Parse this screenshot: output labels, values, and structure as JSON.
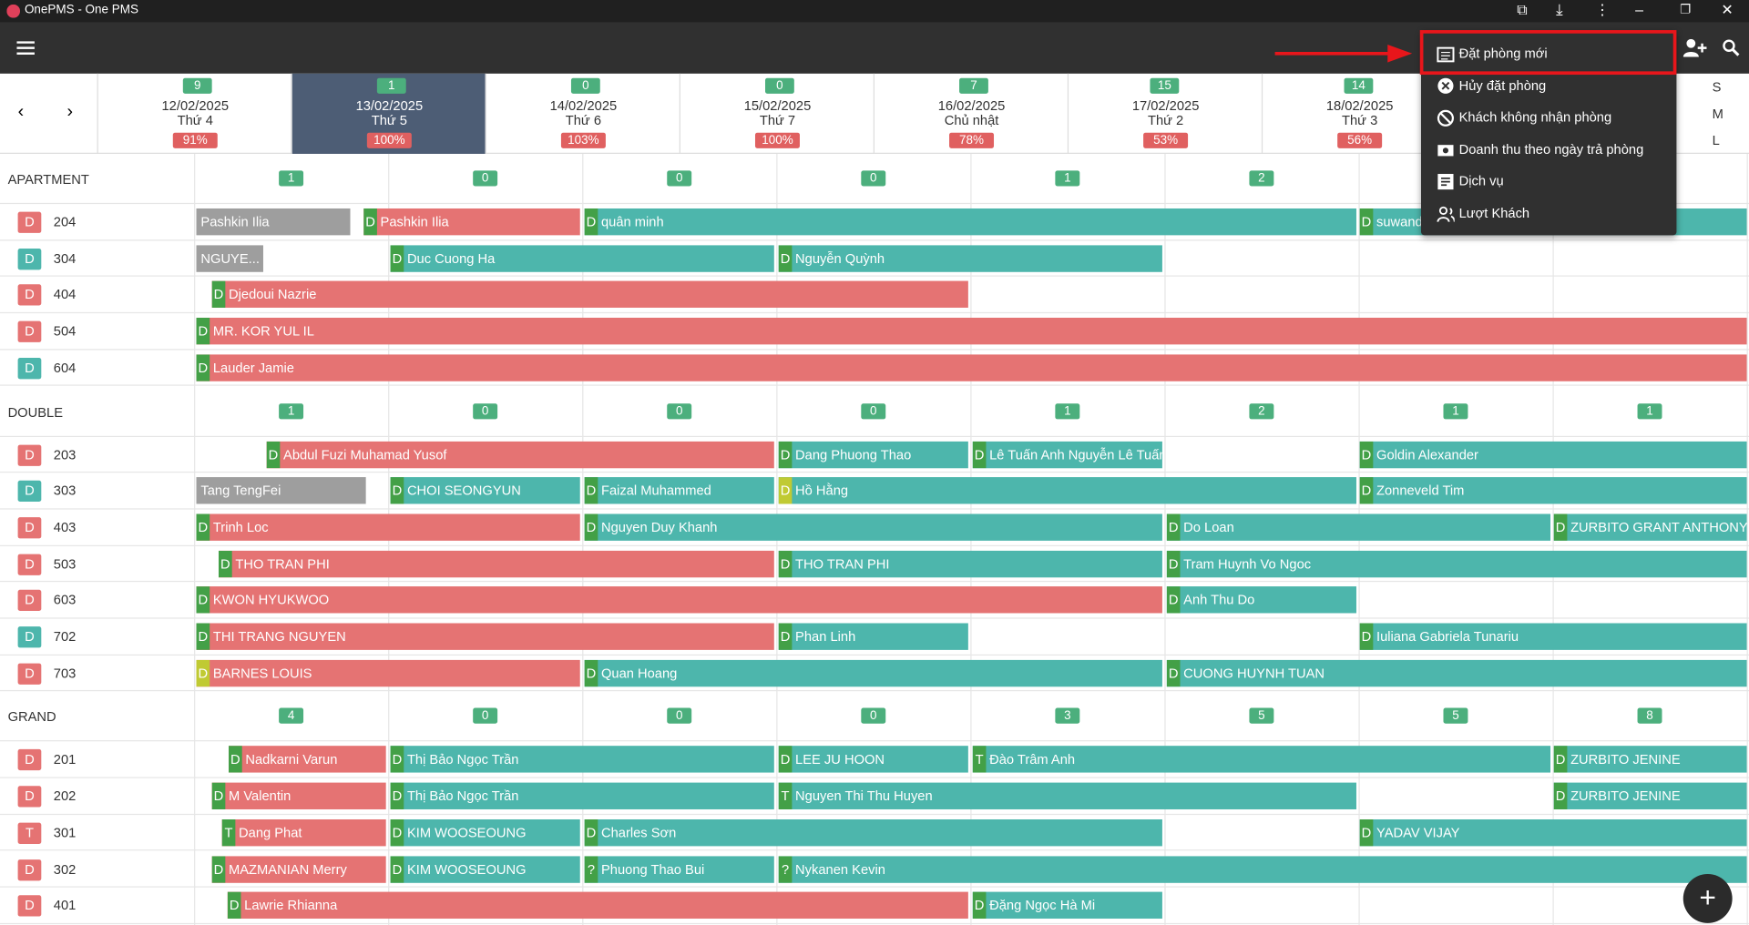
{
  "app_title": "OnePMS - One PMS",
  "days": [
    {
      "count": 9,
      "date": "12/02/2025",
      "weekday": "Thứ 4",
      "occupancy": "91%"
    },
    {
      "count": 1,
      "date": "13/02/2025",
      "weekday": "Thứ 5",
      "occupancy": "100%"
    },
    {
      "count": 0,
      "date": "14/02/2025",
      "weekday": "Thứ 6",
      "occupancy": "103%"
    },
    {
      "count": 0,
      "date": "15/02/2025",
      "weekday": "Thứ 7",
      "occupancy": "100%"
    },
    {
      "count": 7,
      "date": "16/02/2025",
      "weekday": "Chủ nhật",
      "occupancy": "78%"
    },
    {
      "count": 15,
      "date": "17/02/2025",
      "weekday": "Thứ 2",
      "occupancy": "53%"
    },
    {
      "count": 14,
      "date": "18/02/2025",
      "weekday": "Thứ 3",
      "occupancy": "56%"
    }
  ],
  "size_options": [
    "S",
    "M",
    "L"
  ],
  "menu": [
    "Đặt phòng mới",
    "Hủy đặt phòng",
    "Khách không nhận phòng",
    "Doanh thu theo ngày trả phòng",
    "Dịch vụ",
    "Lượt Khách"
  ],
  "sections": [
    {
      "name": "APARTMENT",
      "counts": [
        1,
        0,
        0,
        0,
        1,
        2
      ],
      "rooms": [
        {
          "code": "D",
          "color": "#e57373",
          "number": "204",
          "bookings": [
            {
              "guest": "Pashkin Ilia"
            },
            {
              "prefix": "D",
              "guest": "Pashkin Ilia"
            },
            {
              "prefix": "D",
              "guest": "quân minh"
            },
            {
              "prefix": "D",
              "guest": "suwand"
            }
          ]
        },
        {
          "code": "D",
          "color": "#4db6ac",
          "number": "304",
          "bookings": [
            {
              "guest": "NGUYE..."
            },
            {
              "prefix": "D",
              "guest": "Duc Cuong Ha"
            },
            {
              "prefix": "D",
              "guest": "Nguyễn Quỳnh"
            }
          ]
        },
        {
          "code": "D",
          "color": "#e57373",
          "number": "404",
          "bookings": [
            {
              "prefix": "D",
              "guest": "Djedoui Nazrie"
            }
          ]
        },
        {
          "code": "D",
          "color": "#e57373",
          "number": "504",
          "bookings": [
            {
              "prefix": "D",
              "guest": "MR. KOR YUL IL"
            }
          ]
        },
        {
          "code": "D",
          "color": "#4db6ac",
          "number": "604",
          "bookings": [
            {
              "prefix": "D",
              "guest": "Lauder Jamie"
            }
          ]
        }
      ]
    },
    {
      "name": "DOUBLE",
      "counts": [
        1,
        0,
        0,
        0,
        1,
        2,
        1,
        1
      ],
      "rooms": [
        {
          "code": "D",
          "color": "#e57373",
          "number": "203",
          "bookings": [
            {
              "prefix": "D",
              "guest": "Abdul Fuzi Muhamad Yusof"
            },
            {
              "prefix": "D",
              "guest": "Dang Phuong Thao"
            },
            {
              "prefix": "D",
              "guest": "Lê Tuấn Anh Nguyễn Lê Tuấn..."
            },
            {
              "prefix": "D",
              "guest": "Goldin Alexander"
            }
          ]
        },
        {
          "code": "D",
          "color": "#4db6ac",
          "number": "303",
          "bookings": [
            {
              "guest": "Tang TengFei"
            },
            {
              "prefix": "D",
              "guest": "CHOI SEONGYUN"
            },
            {
              "prefix": "D",
              "guest": "Faizal Muhammed"
            },
            {
              "prefix": "D",
              "guest": "Hồ Hằng"
            },
            {
              "prefix": "D",
              "guest": "Zonneveld Tim"
            }
          ]
        },
        {
          "code": "D",
          "color": "#e57373",
          "number": "403",
          "bookings": [
            {
              "prefix": "D",
              "guest": "Trinh Loc"
            },
            {
              "prefix": "D",
              "guest": "Nguyen Duy Khanh"
            },
            {
              "prefix": "D",
              "guest": "Do Loan"
            },
            {
              "prefix": "D",
              "guest": "ZURBITO GRANT ANTHONY"
            }
          ]
        },
        {
          "code": "D",
          "color": "#e57373",
          "number": "503",
          "bookings": [
            {
              "prefix": "D",
              "guest": "THO TRAN PHI"
            },
            {
              "prefix": "D",
              "guest": "THO TRAN PHI"
            },
            {
              "prefix": "D",
              "guest": "Tram Huynh Vo Ngoc"
            }
          ]
        },
        {
          "code": "D",
          "color": "#e57373",
          "number": "603",
          "bookings": [
            {
              "prefix": "D",
              "guest": "KWON HYUKWOO"
            },
            {
              "prefix": "D",
              "guest": "Anh Thu Do"
            }
          ]
        },
        {
          "code": "D",
          "color": "#4db6ac",
          "number": "702",
          "bookings": [
            {
              "prefix": "D",
              "guest": "THI TRANG NGUYEN"
            },
            {
              "prefix": "D",
              "guest": "Phan Linh"
            },
            {
              "prefix": "D",
              "guest": "Iuliana Gabriela Tunariu"
            }
          ]
        },
        {
          "code": "D",
          "color": "#e57373",
          "number": "703",
          "bookings": [
            {
              "prefix": "D",
              "guest": "BARNES LOUIS"
            },
            {
              "prefix": "D",
              "guest": "Quan Hoang"
            },
            {
              "prefix": "D",
              "guest": "CUONG HUYNH TUAN"
            }
          ]
        }
      ]
    },
    {
      "name": "GRAND",
      "counts": [
        4,
        0,
        0,
        0,
        3,
        5,
        5,
        8
      ],
      "rooms": [
        {
          "code": "D",
          "color": "#e57373",
          "number": "201",
          "bookings": [
            {
              "prefix": "D",
              "guest": "Nadkarni Varun"
            },
            {
              "prefix": "D",
              "guest": "Thị Bảo Ngọc Trần"
            },
            {
              "prefix": "D",
              "guest": "LEE JU HOON"
            },
            {
              "prefix": "T",
              "guest": "Đào Trâm Anh"
            },
            {
              "prefix": "D",
              "guest": "ZURBITO JENINE"
            }
          ]
        },
        {
          "code": "D",
          "color": "#e57373",
          "number": "202",
          "bookings": [
            {
              "prefix": "D",
              "guest": "M Valentin"
            },
            {
              "prefix": "D",
              "guest": "Thị Bảo Ngọc Trần"
            },
            {
              "prefix": "T",
              "guest": "Nguyen Thi Thu Huyen"
            },
            {
              "prefix": "D",
              "guest": "ZURBITO JENINE"
            }
          ]
        },
        {
          "code": "T",
          "color": "#e57373",
          "number": "301",
          "bookings": [
            {
              "prefix": "T",
              "guest": "Dang Phat"
            },
            {
              "prefix": "D",
              "guest": "KIM WOOSEOUNG"
            },
            {
              "prefix": "D",
              "guest": "Charles Sơn"
            },
            {
              "prefix": "D",
              "guest": "YADAV VIJAY"
            }
          ]
        },
        {
          "code": "D",
          "color": "#e57373",
          "number": "302",
          "bookings": [
            {
              "prefix": "D",
              "guest": "MAZMANIAN Merry"
            },
            {
              "prefix": "D",
              "guest": "KIM WOOSEOUNG"
            },
            {
              "prefix": "?",
              "guest": "Phuong Thao Bui"
            },
            {
              "prefix": "?",
              "guest": "Nykanen Kevin"
            }
          ]
        },
        {
          "code": "D",
          "color": "#e57373",
          "number": "401",
          "bookings": [
            {
              "prefix": "D",
              "guest": "Lawrie Rhianna"
            },
            {
              "prefix": "D",
              "guest": "Đặng Ngọc Hà Mi"
            }
          ]
        }
      ]
    }
  ]
}
